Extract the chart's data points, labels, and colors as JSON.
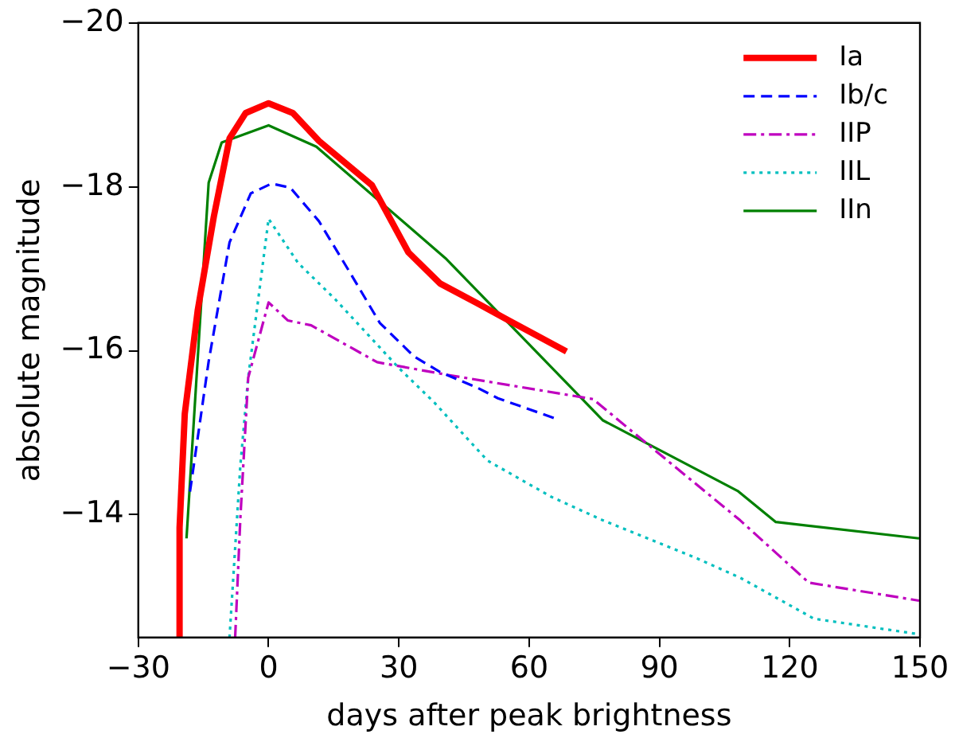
{
  "chart_data": {
    "type": "line",
    "xlabel": "days after peak brightness",
    "ylabel": "absolute magnitude",
    "xlim": [
      -30,
      150
    ],
    "xticks": [
      -30,
      0,
      30,
      60,
      90,
      120,
      150
    ],
    "ylim": [
      -12.5,
      -20
    ],
    "yticks": [
      -20,
      -18,
      -16,
      -14
    ],
    "grid": false,
    "legend": "top right",
    "marker": "none",
    "series": [
      {
        "name": "Ia",
        "color": "#ff0000",
        "line_style": "solid",
        "x": [
          -20.7,
          -20.5,
          -19.3,
          -16.3,
          -12.6,
          -9,
          -5.3,
          0,
          5.6,
          11.6,
          23.8,
          32.2,
          39.5,
          48,
          55.3,
          68.6
        ],
        "values": [
          -12.5,
          -13.84,
          -15.23,
          -16.5,
          -17.64,
          -18.59,
          -18.9,
          -19.02,
          -18.9,
          -18.56,
          -18.02,
          -17.2,
          -16.82,
          -16.58,
          -16.37,
          -15.99
        ]
      },
      {
        "name": "Ib/c",
        "color": "#0000ff",
        "line_style": "dashed",
        "x": [
          -18.1,
          -13.8,
          -9,
          -4.1,
          0.7,
          5,
          11.6,
          18.9,
          25.6,
          33.5,
          39.5,
          48,
          52.8,
          66.2
        ],
        "values": [
          -14.28,
          -15.87,
          -17.32,
          -17.92,
          -18.04,
          -17.99,
          -17.58,
          -16.94,
          -16.34,
          -15.93,
          -15.74,
          -15.55,
          -15.42,
          -15.17
        ]
      },
      {
        "name": "IIP",
        "color": "#bf00bf",
        "line_style": "dashdot",
        "x": [
          -7.7,
          -6.5,
          -4.7,
          0,
          4.4,
          9.8,
          25,
          40.7,
          74.7,
          86.8,
          108.6,
          124.4,
          149.8
        ],
        "values": [
          -12.5,
          -13.96,
          -15.67,
          -16.59,
          -16.37,
          -16.31,
          -15.86,
          -15.71,
          -15.41,
          -14.88,
          -13.93,
          -13.17,
          -12.95
        ]
      },
      {
        "name": "IIL",
        "color": "#00bfbf",
        "line_style": "dotted",
        "x": [
          -9,
          -6.5,
          -4.7,
          0,
          6.8,
          15.3,
          29.8,
          38.3,
          50.4,
          65,
          77,
          98.9,
          108.6,
          125.6,
          149.8
        ],
        "values": [
          -12.5,
          -14.6,
          -15.67,
          -17.61,
          -17.07,
          -16.63,
          -15.8,
          -15.36,
          -14.66,
          -14.22,
          -13.93,
          -13.46,
          -13.23,
          -12.73,
          -12.54
        ]
      },
      {
        "name": "IIn",
        "color": "#008000",
        "line_style": "solid",
        "x": [
          -18.9,
          -13.8,
          -10.8,
          0,
          11,
          40.7,
          77,
          108,
          116.8,
          149.8
        ],
        "values": [
          -13.71,
          -18.05,
          -18.54,
          -18.75,
          -18.49,
          -17.13,
          -15.15,
          -14.29,
          -13.91,
          -13.71
        ]
      }
    ]
  }
}
